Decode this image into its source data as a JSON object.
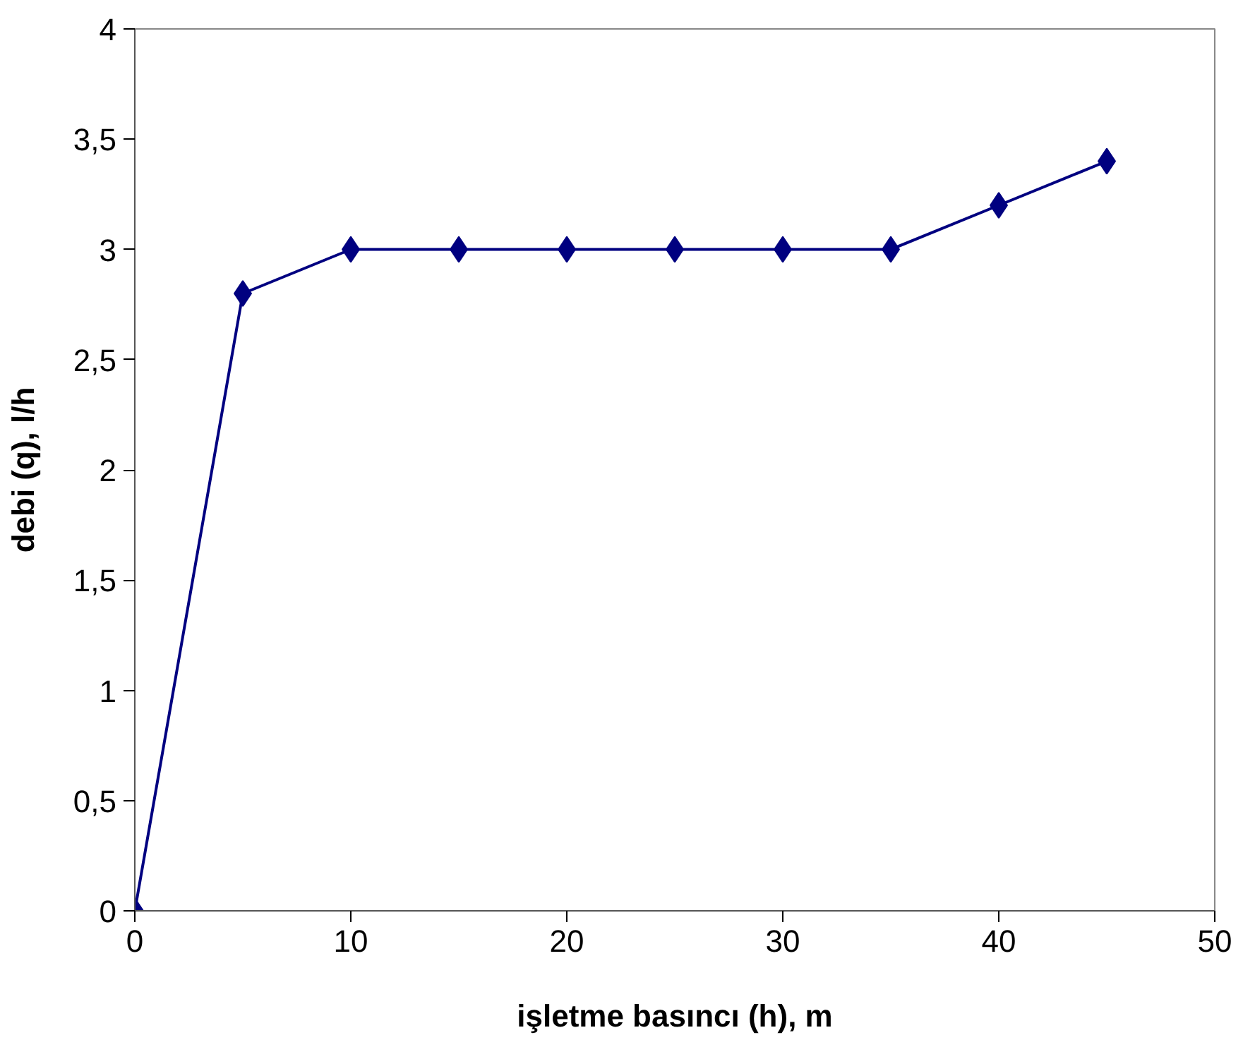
{
  "chart_data": {
    "type": "line",
    "xlabel": "işletme basıncı (h), m",
    "ylabel": "debi (q), l/h",
    "x": [
      0,
      5,
      10,
      15,
      20,
      25,
      30,
      35,
      40,
      45
    ],
    "series": [
      {
        "color": "#000080",
        "values": [
          0,
          2.8,
          3,
          3,
          3,
          3,
          3,
          3,
          3.2,
          3.4
        ]
      }
    ],
    "xlim": [
      0,
      50
    ],
    "xticks": [
      0,
      10,
      20,
      30,
      40,
      50
    ],
    "ylim": [
      0,
      4
    ],
    "yticks": [
      0,
      {
        "value": 0.5,
        "label": "0,5"
      },
      1,
      {
        "value": 1.5,
        "label": "1,5"
      },
      2,
      {
        "value": 2.5,
        "label": "2,5"
      },
      3,
      {
        "value": 3.5,
        "label": "3,5"
      },
      4
    ],
    "marker": "diamond",
    "line_style": "solid"
  }
}
